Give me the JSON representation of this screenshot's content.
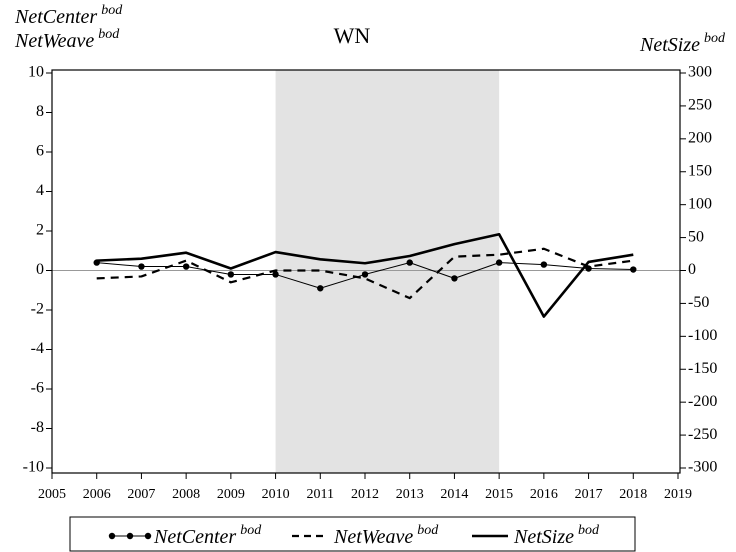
{
  "chart_data": {
    "type": "line",
    "title": "WN",
    "ylabel": [
      {
        "text": "NetCenter",
        "sup": "bod"
      },
      {
        "text": "NetWeave",
        "sup": "bod"
      }
    ],
    "y2label": {
      "text": "NetSize",
      "sup": "bod"
    },
    "x": [
      2006,
      2007,
      2008,
      2009,
      2010,
      2011,
      2012,
      2013,
      2014,
      2015,
      2016,
      2017,
      2018
    ],
    "xlim": [
      2005,
      2019
    ],
    "xticks": [
      2005,
      2006,
      2007,
      2008,
      2009,
      2010,
      2011,
      2012,
      2013,
      2014,
      2015,
      2016,
      2017,
      2018,
      2019
    ],
    "ylim": [
      -10,
      10
    ],
    "yticks": [
      -10,
      -8,
      -6,
      -4,
      -2,
      0,
      2,
      4,
      6,
      8,
      10
    ],
    "y2lim": [
      -300,
      300
    ],
    "y2ticks": [
      -300,
      -250,
      -200,
      -150,
      -100,
      -50,
      0,
      50,
      100,
      150,
      200,
      250,
      300
    ],
    "shaded_range": [
      2010,
      2015
    ],
    "zero_line": true,
    "series": [
      {
        "name": "NetCenter",
        "sup": "bod",
        "color": "#000000",
        "style": "dots",
        "values": [
          0.4,
          0.2,
          0.2,
          -0.2,
          -0.2,
          -0.9,
          -0.2,
          0.4,
          -0.4,
          0.4,
          0.3,
          0.1,
          0.05
        ]
      },
      {
        "name": "NetWeave",
        "sup": "bod",
        "color": "#000000",
        "style": "dashed",
        "values": [
          -0.4,
          -0.3,
          0.5,
          -0.6,
          0.0,
          0.0,
          -0.4,
          -1.4,
          0.7,
          0.8,
          1.1,
          0.2,
          0.5
        ]
      },
      {
        "name": "NetSize",
        "sup": "bod",
        "color": "#000000",
        "style": "solid",
        "axis": "y2",
        "values": [
          15,
          18,
          27,
          3,
          28,
          17,
          11,
          22,
          40,
          55,
          -70,
          13,
          24
        ]
      }
    ]
  }
}
